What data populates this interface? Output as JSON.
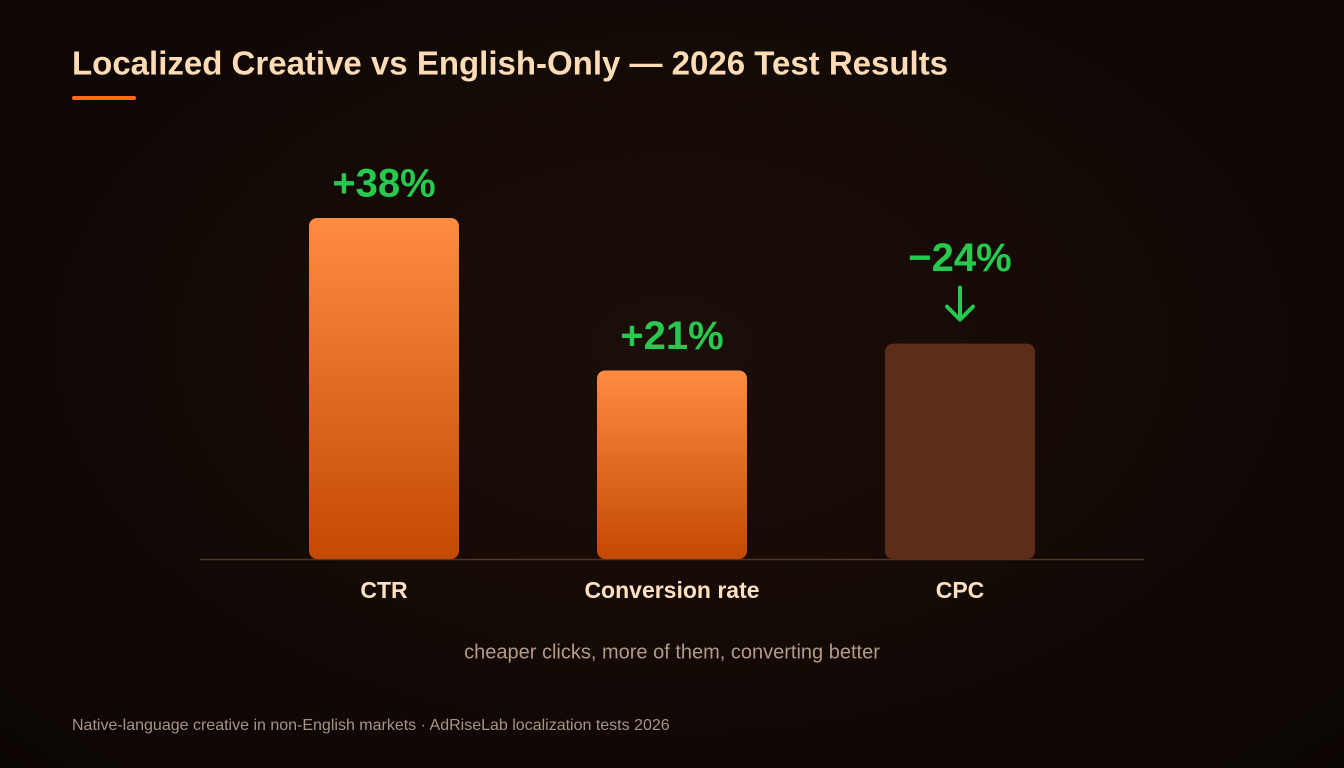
{
  "chart_data": {
    "type": "bar",
    "title": "Localized Creative vs English-Only — 2026 Test Results",
    "categories": [
      "CTR",
      "Conversion rate",
      "CPC"
    ],
    "values": [
      38,
      21,
      -24
    ],
    "value_labels": [
      "+38%",
      "+21%",
      "−24%"
    ],
    "colors": [
      "#ff8c42",
      "#ff8c42",
      "#5c2e1a"
    ],
    "subtitle": "cheaper clicks, more of them, converting better",
    "source": "Native-language creative in non-English markets · AdRiseLab localization tests 2026"
  }
}
